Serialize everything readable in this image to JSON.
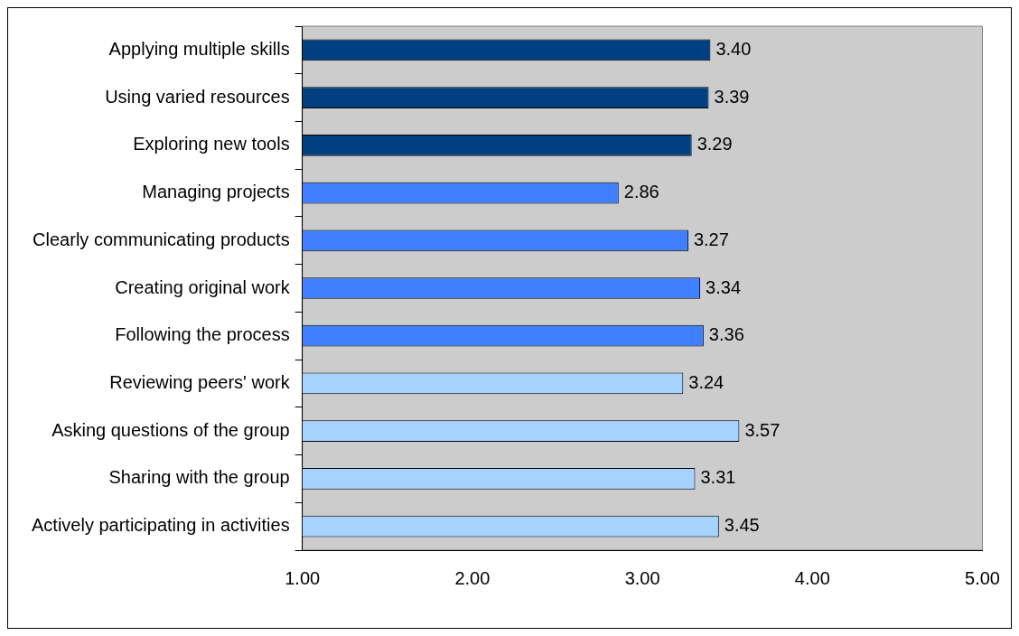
{
  "chart_data": {
    "type": "bar",
    "orientation": "horizontal",
    "categories": [
      "Applying multiple skills",
      "Using varied resources",
      "Exploring new tools",
      "Managing projects",
      "Clearly communicating products",
      "Creating original work",
      "Following the process",
      "Reviewing peers' work",
      "Asking questions of the group",
      "Sharing with the group",
      "Actively participating in activities"
    ],
    "values": [
      3.4,
      3.39,
      3.29,
      2.86,
      3.27,
      3.34,
      3.36,
      3.24,
      3.57,
      3.31,
      3.45
    ],
    "value_labels": [
      "3.40",
      "3.39",
      "3.29",
      "2.86",
      "3.27",
      "3.34",
      "3.36",
      "3.24",
      "3.57",
      "3.31",
      "3.45"
    ],
    "colors": [
      "#004080",
      "#004080",
      "#004080",
      "#4080ff",
      "#4080ff",
      "#4080ff",
      "#4080ff",
      "#a6d2ff",
      "#a6d2ff",
      "#a6d2ff",
      "#a6d2ff"
    ],
    "xlim": [
      1,
      5
    ],
    "xticks": [
      {
        "value": 1,
        "label": "1.00"
      },
      {
        "value": 2,
        "label": "2.00"
      },
      {
        "value": 3,
        "label": "3.00"
      },
      {
        "value": 4,
        "label": "4.00"
      },
      {
        "value": 5,
        "label": "5.00"
      }
    ],
    "grid": false
  }
}
